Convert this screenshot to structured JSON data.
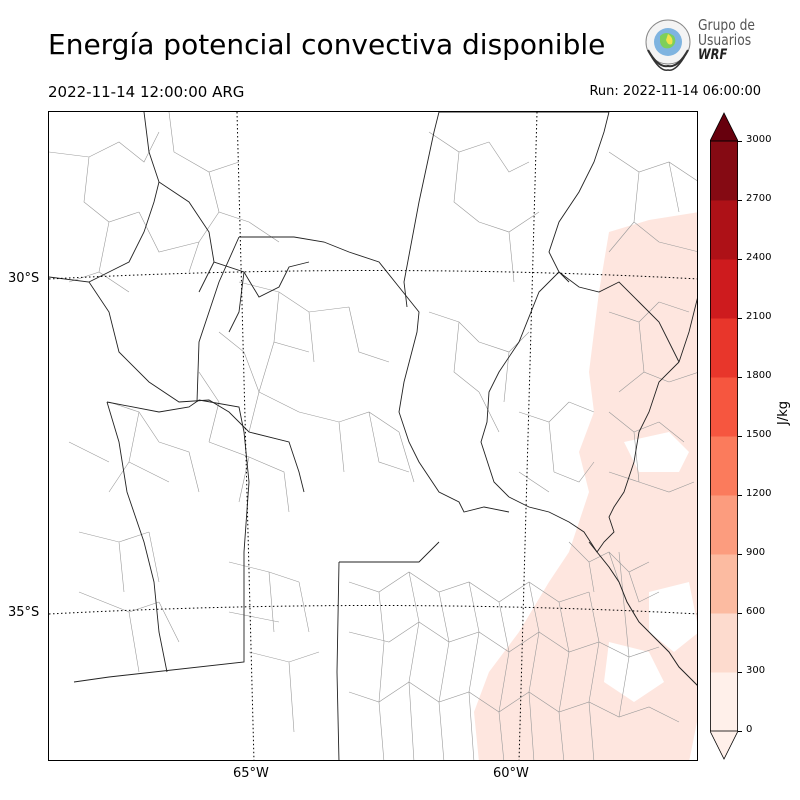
{
  "header": {
    "title": "Energía potencial convectiva disponible",
    "valid_time": "2022-11-14 12:00:00 ARG",
    "run_time": "Run: 2022-11-14 06:00:00"
  },
  "logo": {
    "line1": "Grupo de",
    "line2": "Usuarios",
    "line3": "WRF"
  },
  "map": {
    "lat_labels": [
      "30°S",
      "35°S"
    ],
    "lon_labels": [
      "65°W",
      "60°W"
    ],
    "cape_field_color": "#fee6df"
  },
  "colorbar": {
    "unit": "J/kg",
    "ticks": [
      "0",
      "300",
      "600",
      "900",
      "1200",
      "1500",
      "1800",
      "2100",
      "2400",
      "2700",
      "3000"
    ],
    "colors": [
      "#fff0ea",
      "#fddbce",
      "#fcbba1",
      "#fc9c7e",
      "#fb7b5c",
      "#f6563f",
      "#e8362b",
      "#ce1b1e",
      "#ae1117",
      "#850a13",
      "#67000d"
    ]
  }
}
